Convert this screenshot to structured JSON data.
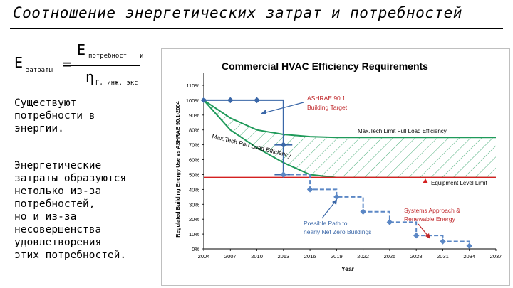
{
  "slide": {
    "title": "Соотношение энергетических затрат и потребностей",
    "formula": {
      "lhs": "E",
      "lhs_sub": "затраты",
      "eq": "=",
      "num": "E",
      "num_sub": "потребност",
      "num_sub2": "и",
      "den": "η",
      "den_sub": "Г, инж. экс"
    },
    "para1": "Существуют\nпотребности в\nэнергии.",
    "para2": "Энергетические\nзатраты образуются\nнетолько из-за\nпотребностей,\nно и из-за\nнесовершенства\nудовлетворения\nэтих потребностей."
  },
  "chart_data": {
    "type": "line",
    "title": "Commercial HVAC Efficiency Requirements",
    "xlabel": "Year",
    "ylabel": "Regulated Building Energy Use vs ASHRAE 90.1-2004",
    "x_ticks": [
      2004,
      2007,
      2010,
      2013,
      2016,
      2019,
      2022,
      2025,
      2028,
      2031,
      2034,
      2037
    ],
    "y_ticks": [
      "0%",
      "10%",
      "20%",
      "30%",
      "40%",
      "50%",
      "60%",
      "70%",
      "80%",
      "90%",
      "100%",
      "110%"
    ],
    "xlim": [
      2004,
      2037
    ],
    "ylim": [
      0,
      110
    ],
    "series": [
      {
        "name": "ASHRAE 90.1 Building Target",
        "color": "#3a67a8",
        "style": "step",
        "x": [
          2004,
          2007,
          2010,
          2013,
          2013,
          2013
        ],
        "y": [
          100,
          100,
          100,
          70,
          50,
          50
        ]
      },
      {
        "name": "Possible Path to nearly Net Zero Buildings",
        "color": "#5b87c5",
        "style": "dashed-step",
        "x": [
          2013,
          2016,
          2019,
          2022,
          2025,
          2028,
          2031,
          2034
        ],
        "y": [
          50,
          40,
          35,
          25,
          18,
          9,
          5,
          2
        ]
      },
      {
        "name": "Max.Tech Limit Full Load Efficiency",
        "color": "#1f9a5a",
        "x": [
          2004,
          2007,
          2010,
          2013,
          2016,
          2019,
          2022,
          2025,
          2028,
          2031,
          2034,
          2037
        ],
        "y": [
          100,
          88,
          80,
          77,
          75.5,
          75,
          75,
          75,
          75,
          75,
          75,
          75
        ]
      },
      {
        "name": "Max.Tech Part Load Efficiency",
        "color": "#1f9a5a",
        "x": [
          2004,
          2007,
          2010,
          2013,
          2016,
          2019,
          2022,
          2025,
          2028,
          2031,
          2034,
          2037
        ],
        "y": [
          100,
          80,
          68,
          58,
          50,
          48,
          48,
          48,
          48,
          48,
          48,
          48
        ]
      },
      {
        "name": "Equipment Level Limit",
        "color": "#d42020",
        "x": [
          2004,
          2037
        ],
        "y": [
          48,
          48
        ]
      }
    ],
    "annotations": [
      {
        "text": "ASHRAE 90.1",
        "color": "#c0282b"
      },
      {
        "text": "Building Target",
        "color": "#c0282b"
      },
      {
        "text": "Max.Tech Limit Full Load Efficiency",
        "color": "#000000"
      },
      {
        "text": "Max.Tech Part Load Efficiency",
        "color": "#000000"
      },
      {
        "text": "Equipment Level Limit",
        "color": "#000000"
      },
      {
        "text": "Systems Approach &",
        "color": "#c0282b"
      },
      {
        "text": "Renewable Energy",
        "color": "#c0282b"
      },
      {
        "text": "Possible Path to",
        "color": "#3a67a8"
      },
      {
        "text": "nearly Net Zero Buildings",
        "color": "#3a67a8"
      }
    ],
    "grid": false
  }
}
